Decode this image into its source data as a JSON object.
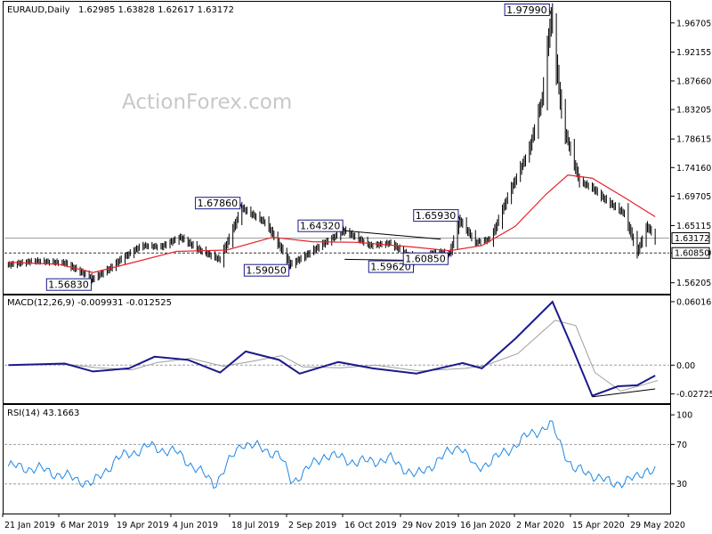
{
  "chart_data": {
    "type": "candlestick",
    "symbol": "EURAUD,Daily",
    "ohlc_header": "1.62985 1.63828 1.62617 1.63172",
    "watermark": "ActionForex.com",
    "price_axis": {
      "range": [
        1.545,
        2.0
      ],
      "ticks": [
        "1.96705",
        "1.92155",
        "1.87660",
        "1.83205",
        "1.78615",
        "1.74160",
        "1.69705",
        "1.65115",
        "1.60850",
        "1.56205"
      ],
      "current_price": "1.63172",
      "support_price": "1.60850",
      "current_color": "#9e9e9e",
      "support_color": "#333333"
    },
    "x_axis": {
      "labels": [
        "21 Jan 2019",
        "6 Mar 2019",
        "19 Apr 2019",
        "4 Jun 2019",
        "18 Jul 2019",
        "2 Sep 2019",
        "16 Oct 2019",
        "29 Nov 2019",
        "16 Jan 2020",
        "2 Mar 2020",
        "15 Apr 2020",
        "29 May 2020"
      ]
    },
    "price_annotations": [
      {
        "text": "1.97990",
        "value": 1.9799,
        "date": "2020-03-19"
      },
      {
        "text": "1.67860",
        "value": 1.6786,
        "date": "2019-07-22"
      },
      {
        "text": "1.64320",
        "value": 1.6432,
        "date": "2019-10-10"
      },
      {
        "text": "1.65930",
        "value": 1.6593,
        "date": "2020-01-08"
      },
      {
        "text": "1.59050",
        "value": 1.5905,
        "date": "2019-08-29"
      },
      {
        "text": "1.59620",
        "value": 1.5962,
        "date": "2019-12-04"
      },
      {
        "text": "1.60850",
        "value": 1.6085,
        "date": "2019-12-31"
      },
      {
        "text": "1.56830",
        "value": 1.5683,
        "date": "2019-03-28"
      }
    ],
    "trendlines_price": [
      {
        "from": {
          "date": "2019-10-10",
          "value": 1.6432
        },
        "to": {
          "date": "2019-12-24",
          "value": 1.63
        }
      },
      {
        "from": {
          "date": "2019-10-10",
          "value": 1.5985
        },
        "to": {
          "date": "2019-12-28",
          "value": 1.5962
        }
      }
    ],
    "series_daily": [
      {
        "date": "2019-01-21",
        "close": 1.59
      },
      {
        "date": "2019-02-10",
        "close": 1.596
      },
      {
        "date": "2019-03-06",
        "close": 1.593
      },
      {
        "date": "2019-03-28",
        "close": 1.5683
      },
      {
        "date": "2019-04-10",
        "close": 1.584
      },
      {
        "date": "2019-04-19",
        "close": 1.599
      },
      {
        "date": "2019-05-05",
        "close": 1.62
      },
      {
        "date": "2019-05-20",
        "close": 1.618
      },
      {
        "date": "2019-06-04",
        "close": 1.633
      },
      {
        "date": "2019-06-20",
        "close": 1.612
      },
      {
        "date": "2019-07-05",
        "close": 1.598
      },
      {
        "date": "2019-07-22",
        "close": 1.6786
      },
      {
        "date": "2019-08-10",
        "close": 1.655
      },
      {
        "date": "2019-08-29",
        "close": 1.5905
      },
      {
        "date": "2019-09-10",
        "close": 1.605
      },
      {
        "date": "2019-09-25",
        "close": 1.625
      },
      {
        "date": "2019-10-10",
        "close": 1.6432
      },
      {
        "date": "2019-10-30",
        "close": 1.62
      },
      {
        "date": "2019-11-15",
        "close": 1.624
      },
      {
        "date": "2019-12-04",
        "close": 1.5962
      },
      {
        "date": "2019-12-20",
        "close": 1.61
      },
      {
        "date": "2019-12-31",
        "close": 1.6085
      },
      {
        "date": "2020-01-08",
        "close": 1.6593
      },
      {
        "date": "2020-01-20",
        "close": 1.625
      },
      {
        "date": "2020-02-01",
        "close": 1.63
      },
      {
        "date": "2020-02-15",
        "close": 1.7
      },
      {
        "date": "2020-03-02",
        "close": 1.77
      },
      {
        "date": "2020-03-12",
        "close": 1.85
      },
      {
        "date": "2020-03-19",
        "close": 1.9799
      },
      {
        "date": "2020-03-28",
        "close": 1.81
      },
      {
        "date": "2020-04-10",
        "close": 1.72
      },
      {
        "date": "2020-04-20",
        "close": 1.71
      },
      {
        "date": "2020-05-01",
        "close": 1.69
      },
      {
        "date": "2020-05-15",
        "close": 1.67
      },
      {
        "date": "2020-05-25",
        "close": 1.61
      },
      {
        "date": "2020-06-02",
        "close": 1.65
      },
      {
        "date": "2020-06-08",
        "close": 1.6317
      }
    ],
    "moving_average": {
      "color": "#e8202a",
      "points": [
        {
          "date": "2019-01-21",
          "value": 1.594
        },
        {
          "date": "2019-03-01",
          "value": 1.591
        },
        {
          "date": "2019-03-28",
          "value": 1.578
        },
        {
          "date": "2019-04-25",
          "value": 1.592
        },
        {
          "date": "2019-06-01",
          "value": 1.611
        },
        {
          "date": "2019-07-10",
          "value": 1.613
        },
        {
          "date": "2019-08-15",
          "value": 1.633
        },
        {
          "date": "2019-09-15",
          "value": 1.626
        },
        {
          "date": "2019-10-20",
          "value": 1.625
        },
        {
          "date": "2019-12-01",
          "value": 1.618
        },
        {
          "date": "2019-12-31",
          "value": 1.612
        },
        {
          "date": "2020-01-25",
          "value": 1.62
        },
        {
          "date": "2020-02-20",
          "value": 1.65
        },
        {
          "date": "2020-03-15",
          "value": 1.7
        },
        {
          "date": "2020-04-01",
          "value": 1.73
        },
        {
          "date": "2020-04-20",
          "value": 1.725
        },
        {
          "date": "2020-05-15",
          "value": 1.695
        },
        {
          "date": "2020-06-08",
          "value": 1.665
        }
      ]
    },
    "macd": {
      "header": "MACD(12,26,9) -0.009931 -0.012525",
      "range": [
        -0.036,
        0.066
      ],
      "ticks": [
        "0.060165",
        "0.00",
        "-0.02725"
      ],
      "macd_color": "#1a1a8c",
      "signal_color": "#9e9e9e",
      "points": [
        {
          "date": "2019-01-21",
          "value": 0.0
        },
        {
          "date": "2019-03-06",
          "value": 0.0015
        },
        {
          "date": "2019-03-28",
          "value": -0.006
        },
        {
          "date": "2019-04-25",
          "value": -0.003
        },
        {
          "date": "2019-05-15",
          "value": 0.008
        },
        {
          "date": "2019-06-10",
          "value": 0.005
        },
        {
          "date": "2019-07-05",
          "value": -0.007
        },
        {
          "date": "2019-07-25",
          "value": 0.013
        },
        {
          "date": "2019-08-20",
          "value": 0.005
        },
        {
          "date": "2019-09-05",
          "value": -0.008
        },
        {
          "date": "2019-10-05",
          "value": 0.003
        },
        {
          "date": "2019-11-01",
          "value": -0.003
        },
        {
          "date": "2019-12-05",
          "value": -0.008
        },
        {
          "date": "2020-01-10",
          "value": 0.002
        },
        {
          "date": "2020-01-25",
          "value": -0.003
        },
        {
          "date": "2020-02-20",
          "value": 0.025
        },
        {
          "date": "2020-03-20",
          "value": 0.06
        },
        {
          "date": "2020-04-05",
          "value": 0.015
        },
        {
          "date": "2020-04-20",
          "value": -0.029
        },
        {
          "date": "2020-05-10",
          "value": -0.02
        },
        {
          "date": "2020-05-25",
          "value": -0.019
        },
        {
          "date": "2020-06-08",
          "value": -0.0099
        }
      ],
      "trendline": {
        "from": {
          "date": "2020-04-20",
          "value": -0.03
        },
        "to": {
          "date": "2020-06-08",
          "value": -0.0225
        }
      }
    },
    "rsi": {
      "header": "RSI(14) 43.1663",
      "range": [
        0,
        110
      ],
      "ticks": [
        "100",
        "70",
        "30"
      ],
      "levels": [
        70,
        30
      ],
      "color": "#1e88e5",
      "points": [
        {
          "date": "2019-01-21",
          "value": 48
        },
        {
          "date": "2019-02-15",
          "value": 45
        },
        {
          "date": "2019-03-28",
          "value": 30
        },
        {
          "date": "2019-04-15",
          "value": 55
        },
        {
          "date": "2019-05-10",
          "value": 68
        },
        {
          "date": "2019-06-01",
          "value": 62
        },
        {
          "date": "2019-07-01",
          "value": 30
        },
        {
          "date": "2019-07-22",
          "value": 72
        },
        {
          "date": "2019-08-20",
          "value": 60
        },
        {
          "date": "2019-08-30",
          "value": 32
        },
        {
          "date": "2019-09-25",
          "value": 60
        },
        {
          "date": "2019-10-20",
          "value": 52
        },
        {
          "date": "2019-11-15",
          "value": 55
        },
        {
          "date": "2019-12-05",
          "value": 38
        },
        {
          "date": "2020-01-08",
          "value": 70
        },
        {
          "date": "2020-01-20",
          "value": 45
        },
        {
          "date": "2020-02-10",
          "value": 60
        },
        {
          "date": "2020-03-02",
          "value": 80
        },
        {
          "date": "2020-03-19",
          "value": 90
        },
        {
          "date": "2020-04-05",
          "value": 45
        },
        {
          "date": "2020-04-20",
          "value": 40
        },
        {
          "date": "2020-05-05",
          "value": 30
        },
        {
          "date": "2020-05-25",
          "value": 36
        },
        {
          "date": "2020-06-02",
          "value": 46
        },
        {
          "date": "2020-06-08",
          "value": 43
        }
      ]
    }
  }
}
